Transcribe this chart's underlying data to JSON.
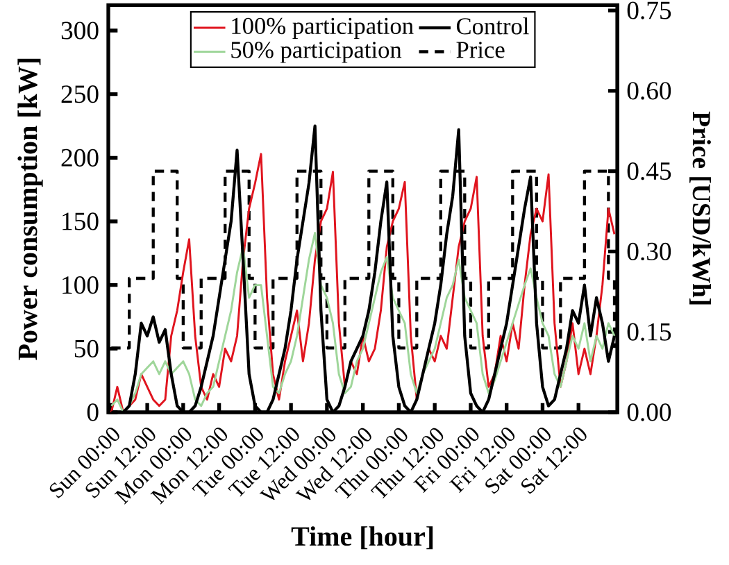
{
  "chart_data": {
    "type": "line",
    "xlabel": "Time [hour]",
    "ylabel": "Power consumption [kW]",
    "y2label": "Price  [USD/kWh]",
    "categories": [
      "Sun 00:00",
      null,
      null,
      null,
      null,
      null,
      "Sun 12:00",
      null,
      null,
      null,
      null,
      null,
      "Mon 00:00",
      null,
      null,
      null,
      null,
      null,
      "Mon 12:00",
      null,
      null,
      null,
      null,
      null,
      "Tue 00:00",
      null,
      null,
      null,
      null,
      null,
      "Tue 12:00",
      null,
      null,
      null,
      null,
      null,
      "Wed 00:00",
      null,
      null,
      null,
      null,
      null,
      "Wed 12:00",
      null,
      null,
      null,
      null,
      null,
      "Thu 00:00",
      null,
      null,
      null,
      null,
      null,
      "Thu 12:00",
      null,
      null,
      null,
      null,
      null,
      "Fri 00:00",
      null,
      null,
      null,
      null,
      null,
      "Fri 12:00",
      null,
      null,
      null,
      null,
      null,
      "Sat 00:00",
      null,
      null,
      null,
      null,
      null,
      "Sat 12:00",
      null,
      null,
      null,
      null,
      null,
      null
    ],
    "ylim": [
      0,
      320
    ],
    "yticks": [
      0,
      50,
      100,
      150,
      200,
      250,
      300
    ],
    "y2lim": [
      0,
      0.76
    ],
    "y2ticks": [
      {
        "value": 0,
        "label": "0.00"
      },
      {
        "value": 0.15,
        "label": "0.15"
      },
      {
        "value": 0.3,
        "label": "0.30"
      },
      {
        "value": 0.45,
        "label": "0.45"
      },
      {
        "value": 0.6,
        "label": "0.60"
      },
      {
        "value": 0.75,
        "label": "0.75"
      }
    ],
    "legend": "top",
    "grid": false,
    "series": [
      {
        "name": "100% participation",
        "color": "#e0141e",
        "values": [
          0,
          20,
          0,
          5,
          10,
          30,
          20,
          10,
          5,
          10,
          60,
          80,
          110,
          136,
          60,
          20,
          10,
          30,
          20,
          50,
          40,
          60,
          120,
          160,
          180,
          203,
          90,
          30,
          10,
          40,
          60,
          80,
          40,
          70,
          120,
          150,
          160,
          189,
          70,
          20,
          40,
          30,
          60,
          40,
          50,
          80,
          130,
          150,
          160,
          181,
          60,
          10,
          30,
          50,
          40,
          60,
          50,
          90,
          130,
          150,
          160,
          185,
          60,
          20,
          30,
          60,
          40,
          70,
          50,
          100,
          140,
          160,
          150,
          187,
          70,
          20,
          40,
          70,
          30,
          50,
          30,
          60,
          100,
          160,
          140
        ]
      },
      {
        "name": "50%   participation",
        "color": "#9fd69a",
        "values": [
          5,
          10,
          0,
          5,
          15,
          30,
          35,
          40,
          30,
          40,
          30,
          35,
          40,
          30,
          10,
          5,
          15,
          20,
          40,
          60,
          80,
          110,
          130,
          90,
          100,
          100,
          60,
          20,
          15,
          30,
          40,
          60,
          90,
          120,
          141,
          100,
          90,
          70,
          30,
          15,
          20,
          40,
          50,
          70,
          90,
          110,
          122,
          90,
          80,
          70,
          30,
          15,
          30,
          40,
          50,
          70,
          90,
          100,
          120,
          90,
          80,
          70,
          30,
          15,
          25,
          40,
          55,
          70,
          85,
          100,
          113,
          90,
          70,
          60,
          30,
          20,
          40,
          60,
          50,
          70,
          40,
          60,
          50,
          70,
          60
        ]
      },
      {
        "name": "Control",
        "color": "#000000",
        "values": [
          0,
          0,
          0,
          5,
          30,
          70,
          60,
          75,
          55,
          65,
          30,
          5,
          0,
          0,
          5,
          20,
          40,
          60,
          90,
          120,
          150,
          206,
          120,
          30,
          5,
          0,
          0,
          10,
          30,
          50,
          80,
          120,
          150,
          180,
          225,
          80,
          10,
          0,
          5,
          20,
          40,
          50,
          60,
          80,
          110,
          150,
          181,
          60,
          20,
          5,
          0,
          10,
          30,
          50,
          70,
          100,
          140,
          170,
          222,
          60,
          15,
          5,
          0,
          10,
          30,
          50,
          70,
          100,
          130,
          160,
          185,
          70,
          20,
          5,
          10,
          30,
          50,
          80,
          70,
          100,
          60,
          90,
          70,
          40,
          60
        ]
      },
      {
        "name": "Price",
        "type": "step",
        "axis": "y2",
        "color": "#000000",
        "line_style": "dashed",
        "values": [
          0.12,
          0.12,
          0.12,
          0.25,
          0.25,
          0.25,
          0.25,
          0.45,
          0.45,
          0.45,
          0.45,
          0.25,
          0.12,
          0.12,
          0.12,
          0.25,
          0.25,
          0.25,
          0.25,
          0.45,
          0.45,
          0.45,
          0.45,
          0.25,
          0.12,
          0.12,
          0.12,
          0.25,
          0.25,
          0.25,
          0.25,
          0.45,
          0.45,
          0.45,
          0.45,
          0.25,
          0.12,
          0.12,
          0.12,
          0.25,
          0.25,
          0.25,
          0.25,
          0.45,
          0.45,
          0.45,
          0.45,
          0.25,
          0.12,
          0.12,
          0.12,
          0.25,
          0.25,
          0.25,
          0.25,
          0.45,
          0.45,
          0.45,
          0.45,
          0.25,
          0.12,
          0.12,
          0.12,
          0.25,
          0.25,
          0.25,
          0.25,
          0.45,
          0.45,
          0.45,
          0.45,
          0.25,
          0.12,
          0.12,
          0.12,
          0.25,
          0.25,
          0.25,
          0.25,
          0.45,
          0.45,
          0.45,
          0.45,
          0.25,
          0.12
        ]
      }
    ]
  }
}
